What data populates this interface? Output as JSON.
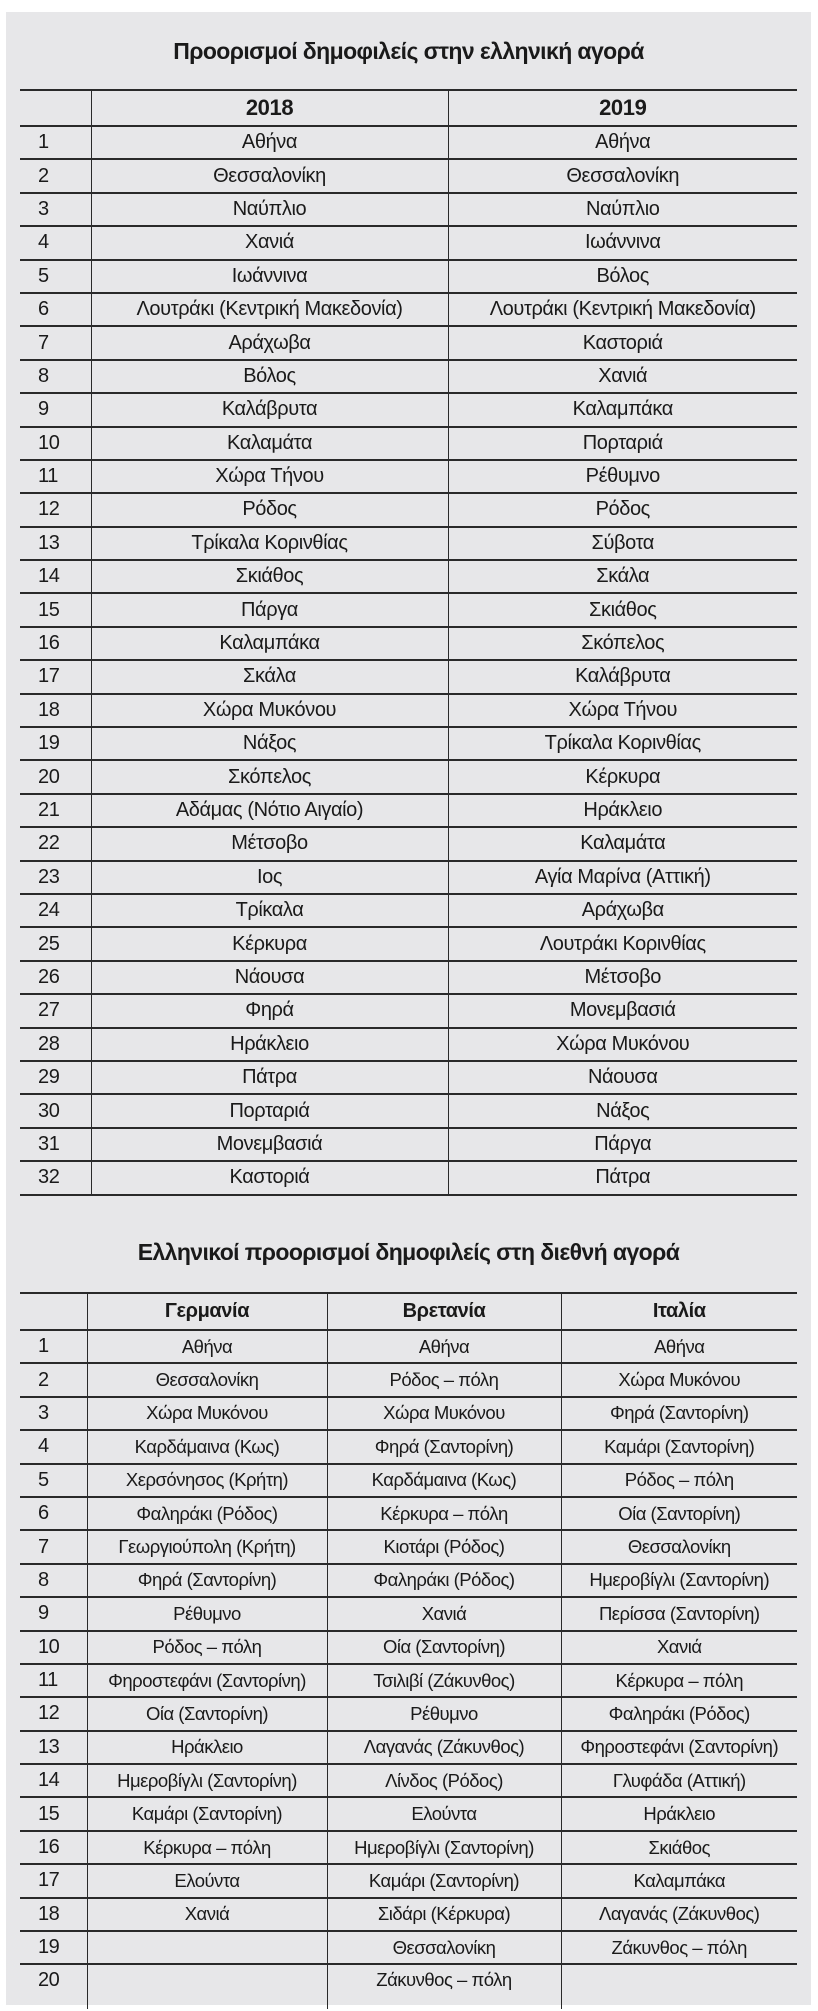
{
  "domestic": {
    "title": "Προορισμοί δημοφιλείς στην ελληνική αγορά",
    "headers": [
      "",
      "2018",
      "2019"
    ],
    "rows": [
      [
        "1",
        "Αθήνα",
        "Αθήνα"
      ],
      [
        "2",
        "Θεσσαλονίκη",
        "Θεσσαλονίκη"
      ],
      [
        "3",
        "Ναύπλιο",
        "Ναύπλιο"
      ],
      [
        "4",
        "Χανιά",
        "Ιωάννινα"
      ],
      [
        "5",
        "Ιωάννινα",
        "Βόλος"
      ],
      [
        "6",
        "Λουτράκι (Κεντρική Μακεδονία)",
        "Λουτράκι (Κεντρική Μακεδονία)"
      ],
      [
        "7",
        "Αράχωβα",
        "Καστοριά"
      ],
      [
        "8",
        "Βόλος",
        "Χανιά"
      ],
      [
        "9",
        "Καλάβρυτα",
        "Καλαμπάκα"
      ],
      [
        "10",
        "Καλαμάτα",
        "Πορταριά"
      ],
      [
        "11",
        "Χώρα Τήνου",
        "Ρέθυμνο"
      ],
      [
        "12",
        "Ρόδος",
        "Ρόδος"
      ],
      [
        "13",
        "Τρίκαλα Κορινθίας",
        "Σύβοτα"
      ],
      [
        "14",
        "Σκιάθος",
        "Σκάλα"
      ],
      [
        "15",
        "Πάργα",
        "Σκιάθος"
      ],
      [
        "16",
        "Καλαμπάκα",
        "Σκόπελος"
      ],
      [
        "17",
        "Σκάλα",
        "Καλάβρυτα"
      ],
      [
        "18",
        "Χώρα Μυκόνου",
        "Χώρα Τήνου"
      ],
      [
        "19",
        "Νάξος",
        "Τρίκαλα Κορινθίας"
      ],
      [
        "20",
        "Σκόπελος",
        "Κέρκυρα"
      ],
      [
        "21",
        "Αδάμας (Νότιο Αιγαίο)",
        "Ηράκλειο"
      ],
      [
        "22",
        "Μέτσοβο",
        "Καλαμάτα"
      ],
      [
        "23",
        "Ιος",
        "Αγία Μαρίνα (Αττική)"
      ],
      [
        "24",
        "Τρίκαλα",
        "Αράχωβα"
      ],
      [
        "25",
        "Κέρκυρα",
        "Λουτράκι Κορινθίας"
      ],
      [
        "26",
        "Νάουσα",
        "Μέτσοβο"
      ],
      [
        "27",
        "Φηρά",
        "Μονεμβασιά"
      ],
      [
        "28",
        "Ηράκλειο",
        "Χώρα Μυκόνου"
      ],
      [
        "29",
        "Πάτρα",
        "Νάουσα"
      ],
      [
        "30",
        "Πορταριά",
        "Νάξος"
      ],
      [
        "31",
        "Μονεμβασιά",
        "Πάργα"
      ],
      [
        "32",
        "Καστοριά",
        "Πάτρα"
      ]
    ]
  },
  "international": {
    "title": "Ελληνικοί προορισμοί δημοφιλείς στη διεθνή αγορά",
    "headers": [
      "",
      "Γερμανία",
      "Βρετανία",
      "Ιταλία"
    ],
    "rows": [
      [
        "1",
        "Αθήνα",
        "Αθήνα",
        "Αθήνα"
      ],
      [
        "2",
        "Θεσσαλονίκη",
        "Ρόδος – πόλη",
        "Χώρα Μυκόνου"
      ],
      [
        "3",
        "Χώρα Μυκόνου",
        "Χώρα Μυκόνου",
        "Φηρά (Σαντορίνη)"
      ],
      [
        "4",
        "Καρδάμαινα (Κως)",
        "Φηρά (Σαντορίνη)",
        "Καμάρι (Σαντορίνη)"
      ],
      [
        "5",
        "Χερσόνησος (Κρήτη)",
        "Καρδάμαινα (Κως)",
        "Ρόδος – πόλη"
      ],
      [
        "6",
        "Φαληράκι (Ρόδος)",
        "Κέρκυρα – πόλη",
        "Οία (Σαντορίνη)"
      ],
      [
        "7",
        "Γεωργιούπολη (Κρήτη)",
        "Κιοτάρι (Ρόδος)",
        "Θεσσαλονίκη"
      ],
      [
        "8",
        "Φηρά (Σαντορίνη)",
        "Φαληράκι (Ρόδος)",
        "Ημεροβίγλι (Σαντορίνη)"
      ],
      [
        "9",
        "Ρέθυμνο",
        "Χανιά",
        "Περίσσα (Σαντορίνη)"
      ],
      [
        "10",
        "Ρόδος – πόλη",
        "Οία (Σαντορίνη)",
        "Χανιά"
      ],
      [
        "11",
        "Φηροστεφάνι (Σαντορίνη)",
        "Τσιλιβί (Ζάκυνθος)",
        "Κέρκυρα – πόλη"
      ],
      [
        "12",
        "Οία (Σαντορίνη)",
        "Ρέθυμνο",
        "Φαληράκι (Ρόδος)"
      ],
      [
        "13",
        "Ηράκλειο",
        "Λαγανάς (Ζάκυνθος)",
        "Φηροστεφάνι (Σαντορίνη)"
      ],
      [
        "14",
        "Ημεροβίγλι (Σαντορίνη)",
        "Λίνδος (Ρόδος)",
        "Γλυφάδα (Αττική)"
      ],
      [
        "15",
        "Καμάρι (Σαντορίνη)",
        "Ελούντα",
        "Ηράκλειο"
      ],
      [
        "16",
        "Κέρκυρα – πόλη",
        "Ημεροβίγλι (Σαντορίνη)",
        "Σκιάθος"
      ],
      [
        "17",
        "Ελούντα",
        "Καμάρι (Σαντορίνη)",
        "Καλαμπάκα"
      ],
      [
        "18",
        "Χανιά",
        "Σιδάρι (Κέρκυρα)",
        "Λαγανάς (Ζάκυνθος)"
      ],
      [
        "19",
        "",
        "Θεσσαλονίκη",
        "Ζάκυνθος – πόλη"
      ],
      [
        "20",
        "",
        "Ζάκυνθος – πόλη",
        ""
      ]
    ]
  }
}
